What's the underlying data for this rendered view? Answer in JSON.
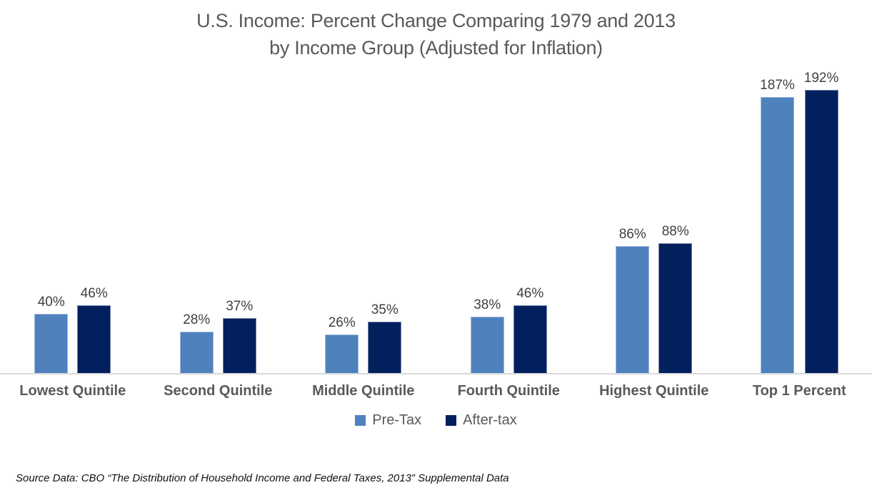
{
  "chart_data": {
    "type": "bar",
    "title": "U.S. Income:  Percent Change Comparing 1979 and 2013 by Income Group (Adjusted for Inflation)",
    "title_line1": "U.S. Income:  Percent Change Comparing 1979 and 2013",
    "title_line2": "by Income Group (Adjusted for Inflation)",
    "categories": [
      "Lowest Quintile",
      "Second Quintile",
      "Middle Quintile",
      "Fourth Quintile",
      "Highest Quintile",
      "Top 1 Percent"
    ],
    "series": [
      {
        "name": "Pre-Tax",
        "color": "#4F81BD",
        "values": [
          40,
          28,
          26,
          38,
          86,
          187
        ]
      },
      {
        "name": "After-tax",
        "color": "#03205E",
        "values": [
          46,
          37,
          35,
          46,
          88,
          192
        ]
      }
    ],
    "value_suffix": "%",
    "data_labels": true,
    "grid": false,
    "legend_position": "bottom",
    "ylim": [
      0,
      200
    ],
    "axis_line_color": "#D9D9D9",
    "title_color": "#595959",
    "label_color": "#404040",
    "category_label_color": "#595959"
  },
  "source_note": "Source Data:  CBO “The Distribution of Household Income and Federal Taxes, 2013”  Supplemental Data"
}
